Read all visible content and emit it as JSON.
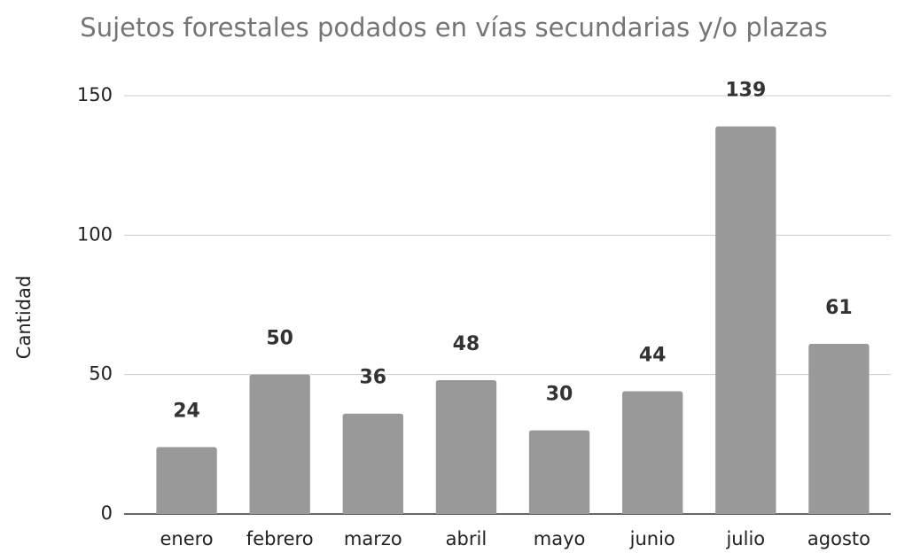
{
  "chart_data": {
    "type": "bar",
    "title": "Sujetos forestales podados en vías secundarias y/o plazas",
    "y_label": "Cantidad",
    "categories": [
      "enero",
      "febrero",
      "marzo",
      "abril",
      "mayo",
      "junio",
      "julio",
      "agosto"
    ],
    "values": [
      24,
      50,
      36,
      48,
      30,
      44,
      139,
      61
    ],
    "color": "#999999",
    "ylim": [
      0,
      150
    ],
    "yticks": [
      0,
      50,
      100,
      150
    ],
    "grid": true
  }
}
